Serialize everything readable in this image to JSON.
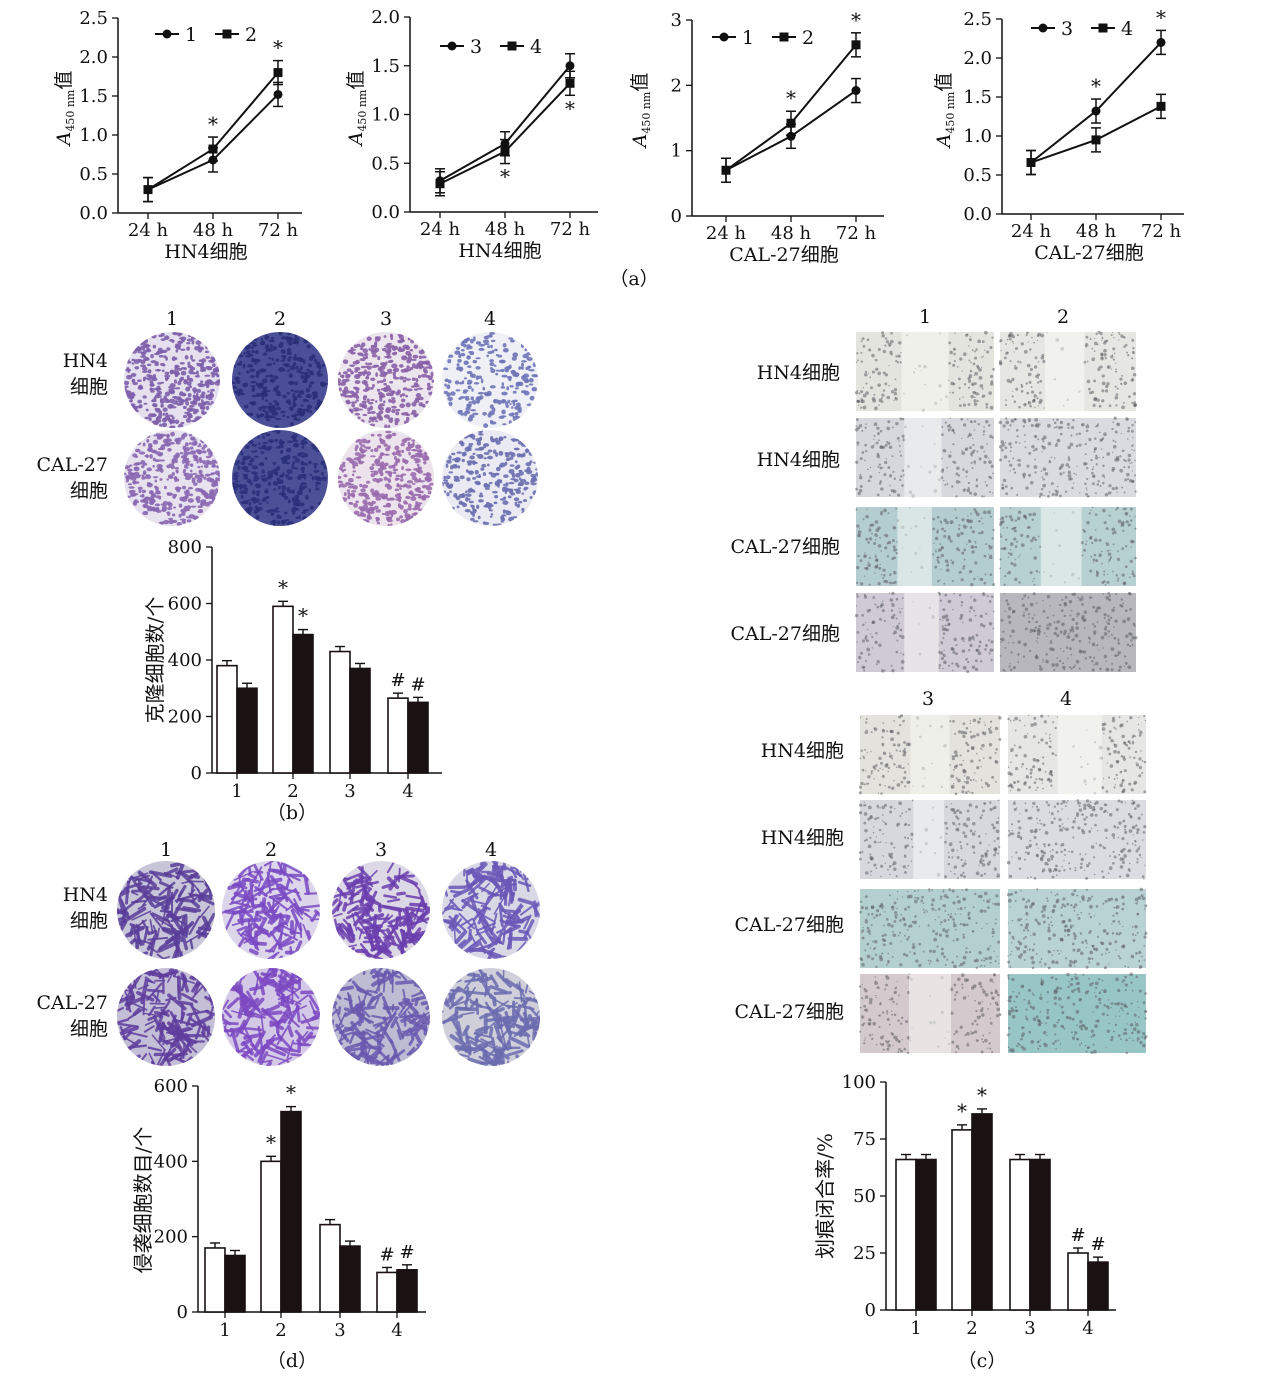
{
  "panel_captions": {
    "a": "（a）",
    "b": "（b）",
    "c": "（c）",
    "d": "（d）"
  },
  "axis_text": {
    "a450": "A",
    "a450_sub": "450 nm",
    "a450_suffix": "值"
  },
  "cells": {
    "hn4": "HN4细胞",
    "cal27": "CAL-27细胞",
    "hn4_l1": "HN4",
    "cal27_l1": "CAL-27",
    "cell_l2": "细胞"
  },
  "chart_data": [
    {
      "id": "a1",
      "type": "line",
      "xlabel": "HN4细胞",
      "categories": [
        "24 h",
        "48 h",
        "72 h"
      ],
      "ylim": [
        0,
        2.5
      ],
      "yticks": [
        "0.0",
        "0.5",
        "1.0",
        "1.5",
        "2.0",
        "2.5"
      ],
      "series": [
        {
          "name": "1",
          "marker": "circle",
          "values": [
            0.3,
            0.68,
            1.52
          ]
        },
        {
          "name": "2",
          "marker": "square",
          "values": [
            0.3,
            0.82,
            1.8
          ]
        }
      ],
      "annotations": [
        {
          "x": "48 h",
          "text": "*",
          "above": true
        },
        {
          "x": "72 h",
          "text": "*",
          "above": true
        }
      ]
    },
    {
      "id": "a2",
      "type": "line",
      "xlabel": "HN4细胞",
      "categories": [
        "24 h",
        "48 h",
        "72 h"
      ],
      "ylim": [
        0,
        2.0
      ],
      "yticks": [
        "0.0",
        "0.5",
        "1.0",
        "1.5",
        "2.0"
      ],
      "series": [
        {
          "name": "3",
          "marker": "circle",
          "values": [
            0.32,
            0.7,
            1.5
          ]
        },
        {
          "name": "4",
          "marker": "square",
          "values": [
            0.29,
            0.62,
            1.32
          ]
        }
      ],
      "annotations": [
        {
          "x": "48 h",
          "text": "*",
          "above": false
        },
        {
          "x": "72 h",
          "text": "*",
          "above": false
        }
      ]
    },
    {
      "id": "a3",
      "type": "line",
      "xlabel": "CAL-27细胞",
      "categories": [
        "24 h",
        "48 h",
        "72 h"
      ],
      "ylim": [
        0,
        3
      ],
      "yticks": [
        "0",
        "1",
        "2",
        "3"
      ],
      "series": [
        {
          "name": "1",
          "marker": "circle",
          "values": [
            0.7,
            1.22,
            1.92
          ]
        },
        {
          "name": "2",
          "marker": "square",
          "values": [
            0.7,
            1.42,
            2.62
          ]
        }
      ],
      "annotations": [
        {
          "x": "48 h",
          "text": "*",
          "above": true
        },
        {
          "x": "72 h",
          "text": "*",
          "above": true
        }
      ]
    },
    {
      "id": "a4",
      "type": "line",
      "xlabel": "CAL-27细胞",
      "categories": [
        "24 h",
        "48 h",
        "72 h"
      ],
      "ylim": [
        0,
        2.5
      ],
      "yticks": [
        "0.0",
        "0.5",
        "1.0",
        "1.5",
        "2.0",
        "2.5"
      ],
      "series": [
        {
          "name": "3",
          "marker": "circle",
          "values": [
            0.66,
            1.32,
            2.2
          ]
        },
        {
          "name": "4",
          "marker": "square",
          "values": [
            0.66,
            0.95,
            1.38
          ]
        }
      ],
      "annotations": [
        {
          "x": "48 h",
          "text": "*",
          "above": true
        },
        {
          "x": "72 h",
          "text": "*",
          "above": true
        }
      ]
    },
    {
      "id": "b",
      "type": "bar",
      "ylabel": "克隆细胞数/个",
      "categories": [
        "1",
        "2",
        "3",
        "4"
      ],
      "ylim": [
        0,
        800
      ],
      "yticks": [
        "0",
        "200",
        "400",
        "600",
        "800"
      ],
      "series": [
        {
          "values": [
            380,
            590,
            430,
            265
          ]
        },
        {
          "values": [
            300,
            490,
            370,
            250
          ]
        }
      ],
      "marks": [
        [
          "",
          "",
          "",
          " #"
        ],
        [
          "",
          "*",
          "",
          ""
        ],
        [
          "",
          "*",
          "",
          ""
        ]
      ],
      "bar_marks": [
        [
          "",
          "*",
          "",
          "#"
        ],
        [
          "",
          "*",
          "",
          "#"
        ]
      ]
    },
    {
      "id": "d",
      "type": "bar",
      "ylabel": "侵袭细胞数目/个",
      "categories": [
        "1",
        "2",
        "3",
        "4"
      ],
      "ylim": [
        0,
        600
      ],
      "yticks": [
        "0",
        "200",
        "400",
        "600"
      ],
      "series": [
        {
          "values": [
            170,
            400,
            232,
            105
          ]
        },
        {
          "values": [
            150,
            532,
            175,
            112
          ]
        }
      ],
      "bar_marks": [
        [
          "",
          "*",
          "",
          "#"
        ],
        [
          "",
          "*",
          "",
          "#"
        ]
      ]
    },
    {
      "id": "c",
      "type": "bar",
      "ylabel": "划痕闭合率/%",
      "categories": [
        "1",
        "2",
        "3",
        "4"
      ],
      "ylim": [
        0,
        100
      ],
      "yticks": [
        "0",
        "25",
        "50",
        "75",
        "100"
      ],
      "series": [
        {
          "values": [
            66,
            79,
            66,
            25
          ]
        },
        {
          "values": [
            66,
            86,
            66,
            21
          ]
        }
      ],
      "bar_marks": [
        [
          "",
          "*",
          "",
          "#"
        ],
        [
          "",
          "*",
          "",
          "#"
        ]
      ]
    }
  ],
  "colony_labels": [
    "1",
    "2",
    "3",
    "4"
  ],
  "scratch_labels_top": [
    "1",
    "2"
  ],
  "scratch_labels_bottom": [
    "3",
    "4"
  ]
}
